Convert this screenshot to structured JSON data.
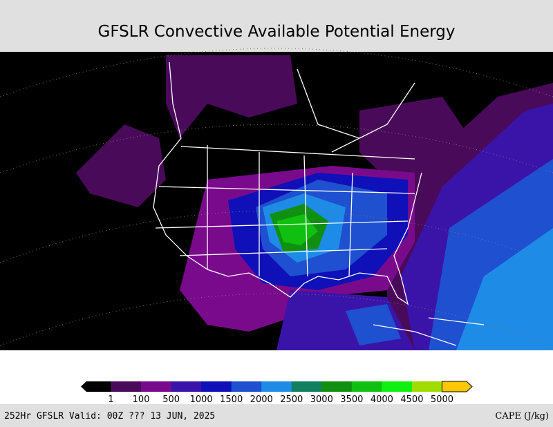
{
  "header": {
    "title": "GFSLR Convective Available Potential Energy"
  },
  "colorbar": {
    "colors": [
      "#000000",
      "#4a0a5a",
      "#7a0a8c",
      "#3a14a8",
      "#1010b8",
      "#1e50d0",
      "#1e8ce6",
      "#108060",
      "#109010",
      "#10c010",
      "#10f010",
      "#a0dc00",
      "#ffc800"
    ],
    "ticks": [
      1,
      100,
      500,
      1000,
      1500,
      2000,
      2500,
      3000,
      3500,
      4000,
      4500,
      5000
    ]
  },
  "footer": {
    "left": "252Hr GFSLR Valid: 00Z ??? 13 JUN, 2025",
    "right": "CAPE (J/kg)"
  }
}
